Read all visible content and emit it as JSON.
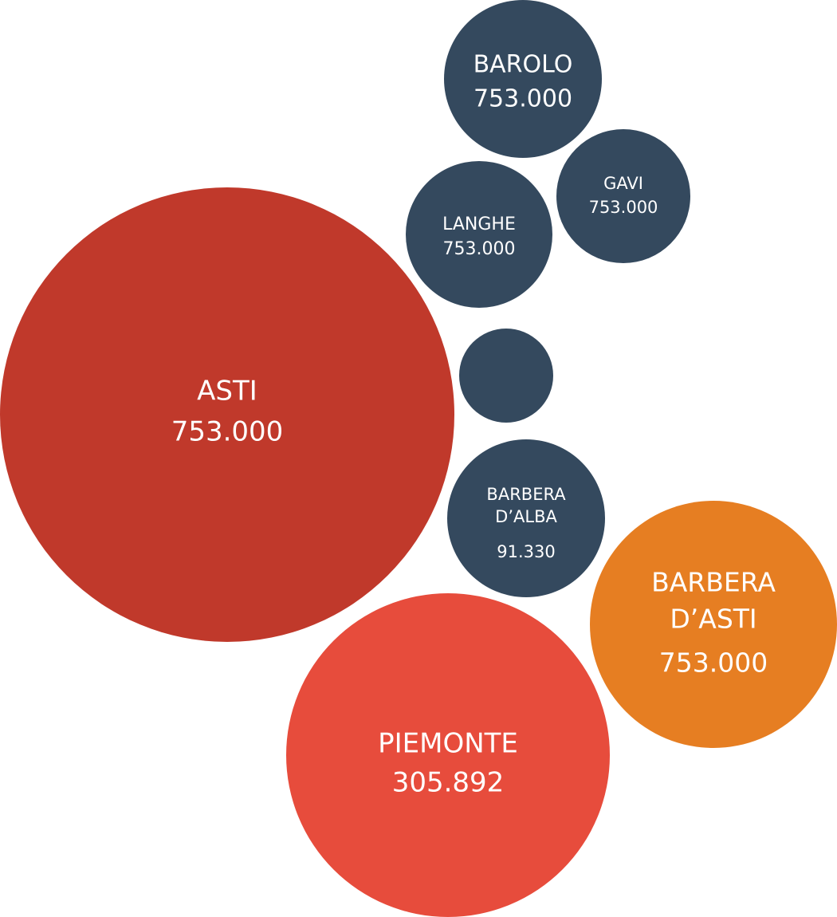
{
  "colors": {
    "asti": "#c0392b",
    "piemonte": "#e74c3c",
    "barbera_dasti": "#e67e22",
    "navy": "#34495e"
  },
  "chart_data": {
    "type": "bubble",
    "title": "",
    "bubbles": [
      {
        "id": "asti",
        "label_lines": [
          "ASTI"
        ],
        "value_label": "753.000",
        "color": "#c0392b"
      },
      {
        "id": "piemonte",
        "label_lines": [
          "PIEMONTE"
        ],
        "value_label": "305.892",
        "color": "#e74c3c"
      },
      {
        "id": "barbera-dasti",
        "label_lines": [
          "BARBERA",
          "D’ASTI"
        ],
        "value_label": "753.000",
        "color": "#e67e22"
      },
      {
        "id": "barolo",
        "label_lines": [
          "BAROLO"
        ],
        "value_label": "753.000",
        "color": "#34495e"
      },
      {
        "id": "gavi",
        "label_lines": [
          "GAVI"
        ],
        "value_label": "753.000",
        "color": "#34495e"
      },
      {
        "id": "langhe",
        "label_lines": [
          "LANGHE"
        ],
        "value_label": "753.000",
        "color": "#34495e"
      },
      {
        "id": "unlabeled",
        "label_lines": [],
        "value_label": "",
        "color": "#34495e"
      },
      {
        "id": "barbera-dalba",
        "label_lines": [
          "BARBERA",
          "D’ALBA"
        ],
        "value_label": "91.330",
        "color": "#34495e"
      }
    ]
  }
}
